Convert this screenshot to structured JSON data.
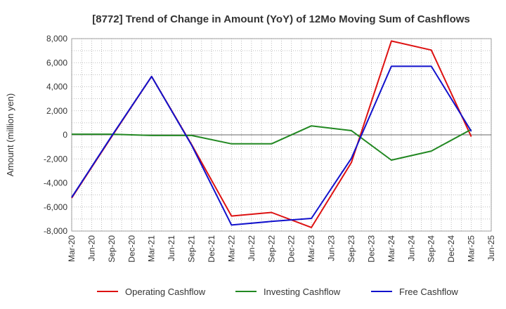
{
  "chart_data": {
    "type": "line",
    "title": "[8772]  Trend of Change in Amount (YoY) of 12Mo Moving Sum of Cashflows",
    "xlabel": "",
    "ylabel": "Amount (million yen)",
    "ylim": [
      -8000,
      8000
    ],
    "yticks": [
      8000,
      6000,
      4000,
      2000,
      0,
      -2000,
      -4000,
      -6000,
      -8000
    ],
    "ytick_labels": [
      "8,000",
      "6,000",
      "4,000",
      "2,000",
      "0",
      "-2,000",
      "-4,000",
      "-6,000",
      "-8,000"
    ],
    "categories": [
      "Mar-20",
      "Jun-20",
      "Sep-20",
      "Dec-20",
      "Mar-21",
      "Jun-21",
      "Sep-21",
      "Dec-21",
      "Mar-22",
      "Jun-22",
      "Sep-22",
      "Dec-22",
      "Mar-23",
      "Jun-23",
      "Sep-23",
      "Dec-23",
      "Mar-24",
      "Jun-24",
      "Sep-24",
      "Dec-24",
      "Mar-25",
      "Jun-25"
    ],
    "grid": true,
    "legend_position": "bottom",
    "series": [
      {
        "name": "Operating Cashflow",
        "color": "#dd1111",
        "values": [
          -5250,
          null,
          -150,
          null,
          4850,
          null,
          -800,
          null,
          -6750,
          null,
          -6450,
          null,
          -7700,
          null,
          -2300,
          null,
          7800,
          null,
          7050,
          null,
          -150,
          null
        ]
      },
      {
        "name": "Investing Cashflow",
        "color": "#228822",
        "values": [
          50,
          null,
          50,
          null,
          -50,
          null,
          -50,
          null,
          -750,
          null,
          -750,
          null,
          750,
          null,
          350,
          null,
          -2100,
          null,
          -1350,
          null,
          450,
          null
        ]
      },
      {
        "name": "Free Cashflow",
        "color": "#1111cc",
        "values": [
          -5200,
          null,
          -100,
          null,
          4850,
          null,
          -850,
          null,
          -7500,
          null,
          -7200,
          null,
          -6950,
          null,
          -1950,
          null,
          5700,
          null,
          5700,
          null,
          300,
          null
        ]
      }
    ]
  }
}
